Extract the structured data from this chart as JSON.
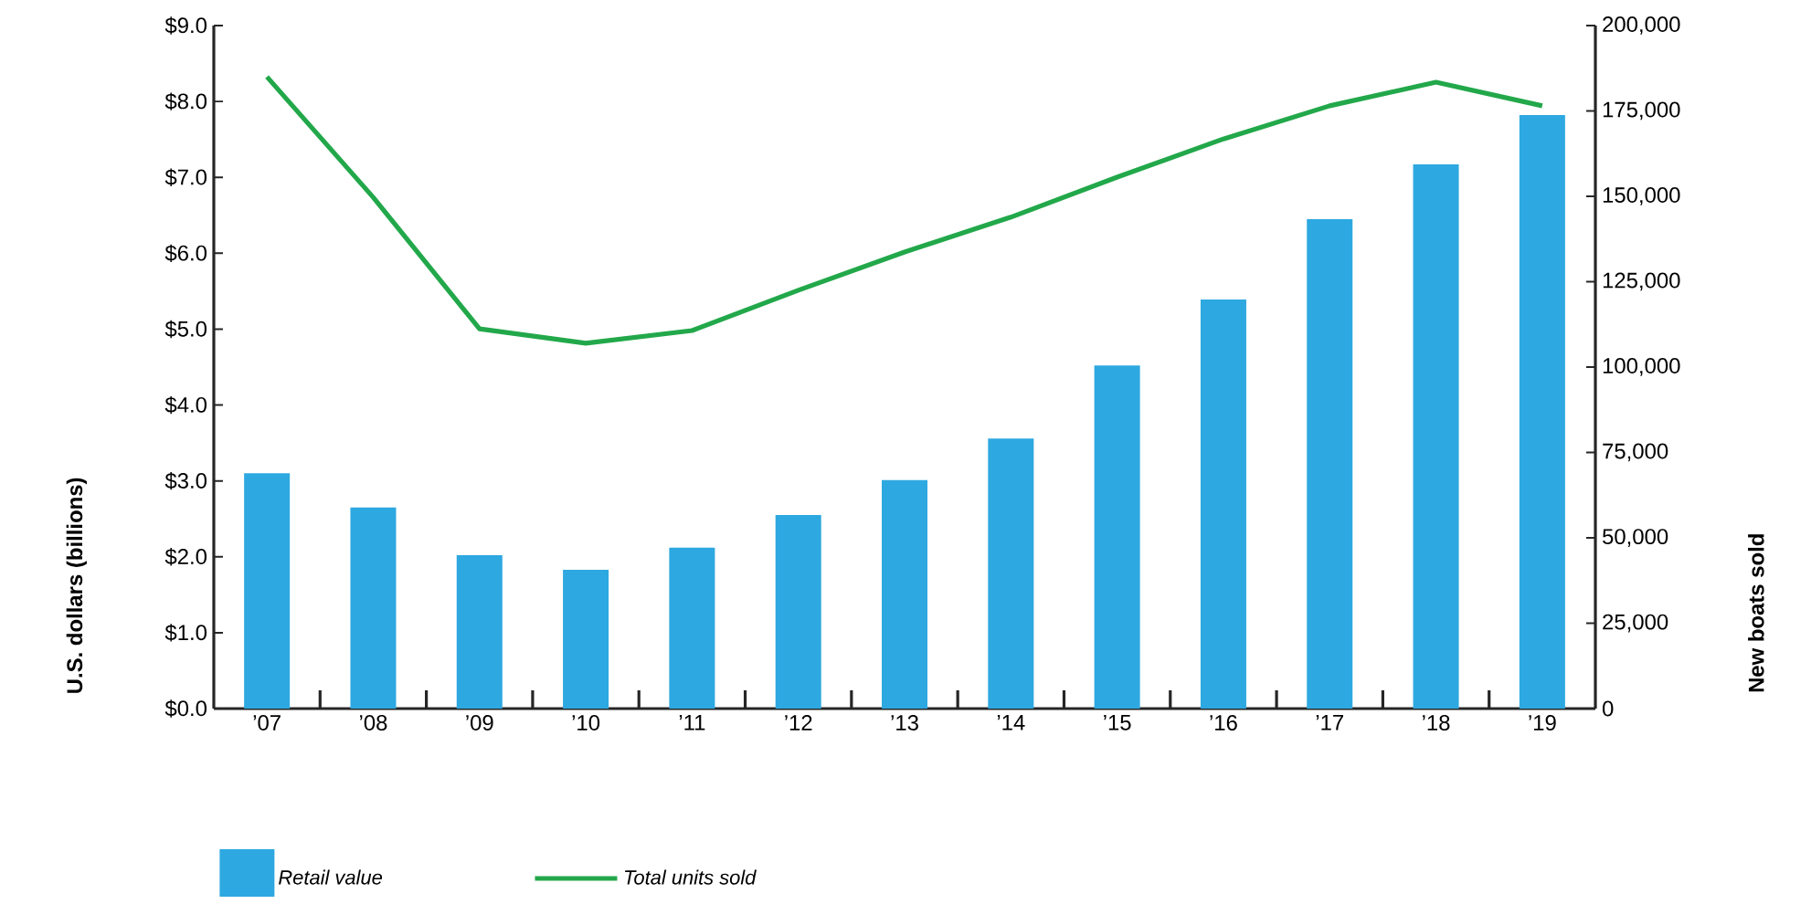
{
  "chart_data": {
    "type": "bar",
    "categories": [
      "’07",
      "’08",
      "’09",
      "’10",
      "’11",
      "’12",
      "’13",
      "’14",
      "’15",
      "’16",
      "’17",
      "’18",
      "’19"
    ],
    "series": [
      {
        "name": "Retail value",
        "color": "#2ea8e0",
        "values": [
          3.1,
          2.65,
          2.02,
          1.83,
          2.12,
          2.55,
          3.01,
          3.56,
          4.52,
          5.39,
          6.45,
          7.17,
          7.82
        ]
      },
      {
        "name": "Total units sold",
        "type": "line",
        "axis": "y2",
        "color": "#22a84a",
        "values": [
          185000,
          149700,
          111200,
          107000,
          110700,
          122500,
          133700,
          143900,
          155600,
          166800,
          176500,
          183400,
          176500
        ]
      }
    ],
    "ylabel": "U.S. dollars (billions)",
    "y2label": "New boats sold",
    "ylim": [
      0,
      9
    ],
    "yticks": [
      {
        "value": 0,
        "label": "$0.0"
      },
      {
        "value": 1,
        "label": "$1.0"
      },
      {
        "value": 2,
        "label": "$2.0"
      },
      {
        "value": 3,
        "label": "$3.0"
      },
      {
        "value": 4,
        "label": "$4.0"
      },
      {
        "value": 5,
        "label": "$5.0"
      },
      {
        "value": 6,
        "label": "$6.0"
      },
      {
        "value": 7,
        "label": "$7.0"
      },
      {
        "value": 8,
        "label": "$8.0"
      },
      {
        "value": 9,
        "label": "$9.0"
      }
    ],
    "y2lim": [
      0,
      200000
    ],
    "y2ticks": [
      0,
      {
        "value": 25000,
        "label": "25,000"
      },
      {
        "value": 50000,
        "label": "50,000"
      },
      {
        "value": 75000,
        "label": "75,000"
      },
      {
        "value": 100000,
        "label": "100,000"
      },
      {
        "value": 125000,
        "label": "125,000"
      },
      {
        "value": 150000,
        "label": "150,000"
      },
      {
        "value": 175000,
        "label": "175,000"
      },
      {
        "value": 200000,
        "label": "200,000"
      }
    ],
    "legend": "bottom"
  }
}
